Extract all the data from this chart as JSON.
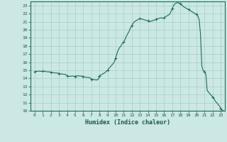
{
  "title": "",
  "xlabel": "Humidex (Indice chaleur)",
  "ylabel": "",
  "bg_color": "#cce8e4",
  "line_color": "#1a6b5a",
  "grid_color": "#aad4cc",
  "xlim": [
    -0.5,
    23.5
  ],
  "ylim": [
    10,
    23.5
  ],
  "xticks": [
    0,
    1,
    2,
    3,
    4,
    5,
    6,
    7,
    8,
    9,
    10,
    11,
    12,
    13,
    14,
    15,
    16,
    17,
    18,
    19,
    20,
    21,
    22,
    23
  ],
  "yticks": [
    10,
    11,
    12,
    13,
    14,
    15,
    16,
    17,
    18,
    19,
    20,
    21,
    22,
    23
  ],
  "x": [
    0.0,
    0.17,
    0.33,
    0.5,
    0.67,
    0.83,
    1.0,
    1.17,
    1.33,
    1.5,
    1.67,
    1.83,
    2.0,
    2.17,
    2.33,
    2.5,
    2.67,
    2.83,
    3.0,
    3.17,
    3.33,
    3.5,
    3.67,
    3.83,
    4.0,
    4.17,
    4.33,
    4.5,
    4.67,
    4.83,
    5.0,
    5.17,
    5.33,
    5.5,
    5.67,
    5.83,
    6.0,
    6.17,
    6.33,
    6.5,
    6.67,
    6.83,
    7.0,
    7.17,
    7.33,
    7.5,
    7.67,
    7.83,
    8.0,
    8.17,
    8.33,
    8.5,
    8.67,
    8.83,
    9.0,
    9.17,
    9.33,
    9.5,
    9.67,
    9.83,
    10.0,
    10.17,
    10.33,
    10.5,
    10.67,
    10.83,
    11.0,
    11.17,
    11.33,
    11.5,
    11.67,
    11.83,
    12.0,
    12.17,
    12.33,
    12.5,
    12.67,
    12.83,
    13.0,
    13.17,
    13.33,
    13.5,
    13.67,
    13.83,
    14.0,
    14.17,
    14.33,
    14.5,
    14.67,
    14.83,
    15.0,
    15.17,
    15.33,
    15.5,
    15.67,
    15.83,
    16.0,
    16.17,
    16.33,
    16.5,
    16.67,
    16.83,
    17.0,
    17.17,
    17.33,
    17.5,
    17.67,
    17.83,
    18.0,
    18.17,
    18.33,
    18.5,
    18.67,
    18.83,
    19.0,
    19.17,
    19.33,
    19.5,
    19.67,
    19.83,
    20.0,
    20.17,
    20.33,
    20.5,
    20.67,
    20.83,
    21.0,
    21.17,
    21.33,
    21.5,
    21.67,
    21.83,
    22.0,
    22.17,
    22.33,
    22.5,
    22.67,
    22.83,
    23.0,
    23.17,
    23.33
  ],
  "y": [
    14.8,
    14.85,
    14.88,
    14.9,
    14.88,
    14.85,
    14.9,
    14.88,
    14.85,
    14.82,
    14.8,
    14.82,
    14.75,
    14.72,
    14.7,
    14.68,
    14.65,
    14.67,
    14.6,
    14.57,
    14.55,
    14.52,
    14.5,
    14.48,
    14.3,
    14.28,
    14.25,
    14.28,
    14.3,
    14.28,
    14.25,
    14.3,
    14.32,
    14.3,
    14.28,
    14.3,
    14.2,
    14.17,
    14.15,
    14.12,
    14.1,
    14.08,
    13.9,
    13.87,
    13.85,
    13.82,
    13.8,
    13.85,
    14.3,
    14.4,
    14.5,
    14.6,
    14.7,
    14.85,
    15.0,
    15.2,
    15.4,
    15.6,
    15.8,
    16.0,
    16.5,
    17.0,
    17.5,
    17.8,
    18.0,
    18.3,
    18.5,
    18.8,
    19.2,
    19.5,
    19.8,
    20.2,
    20.5,
    20.8,
    21.0,
    21.1,
    21.2,
    21.3,
    21.4,
    21.35,
    21.3,
    21.25,
    21.2,
    21.15,
    21.1,
    21.0,
    21.05,
    21.1,
    21.15,
    21.2,
    21.3,
    21.35,
    21.4,
    21.45,
    21.5,
    21.4,
    21.5,
    21.6,
    21.7,
    21.8,
    21.9,
    22.2,
    22.6,
    23.0,
    23.2,
    23.3,
    23.35,
    23.3,
    23.2,
    23.1,
    22.9,
    22.8,
    22.7,
    22.6,
    22.5,
    22.4,
    22.3,
    22.2,
    22.1,
    22.0,
    21.9,
    21.7,
    21.3,
    19.5,
    15.5,
    15.0,
    14.8,
    14.5,
    12.5,
    12.3,
    12.1,
    11.9,
    11.7,
    11.5,
    11.2,
    11.0,
    10.8,
    10.6,
    10.3,
    10.1,
    10.0
  ]
}
